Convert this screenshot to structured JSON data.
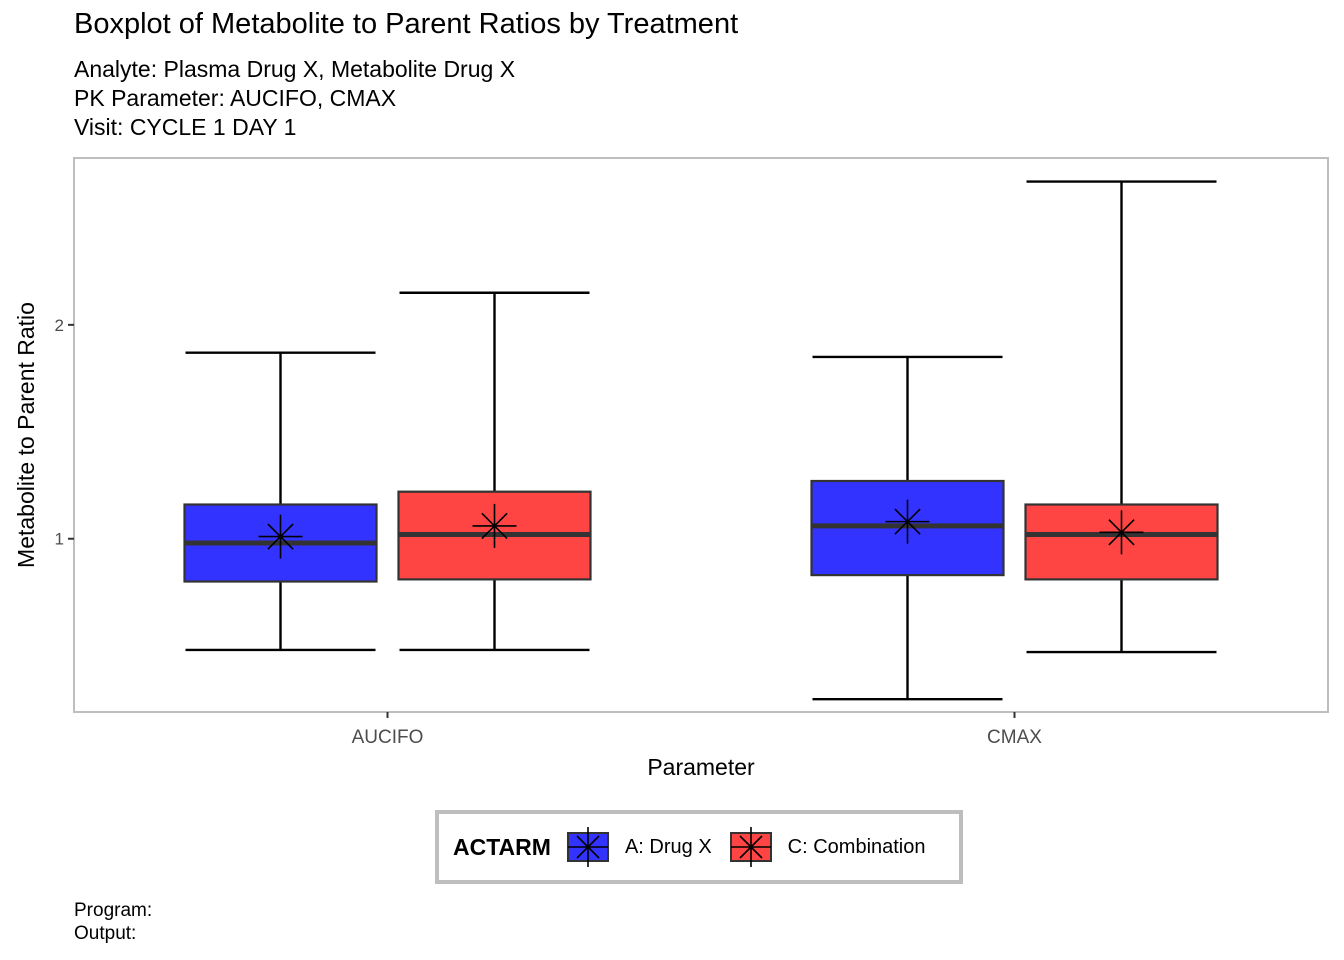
{
  "chart_data": {
    "type": "boxplot",
    "title": "Boxplot of Metabolite to Parent Ratios by Treatment",
    "subtitle_lines": [
      "Analyte: Plasma Drug X, Metabolite Drug X",
      "PK Parameter: AUCIFO, CMAX",
      "Visit: CYCLE 1 DAY 1"
    ],
    "xlabel": "Parameter",
    "ylabel": "Metabolite to Parent Ratio",
    "categories": [
      "AUCIFO",
      "CMAX"
    ],
    "ylim": [
      0.19,
      2.78
    ],
    "yticks": [
      1,
      2
    ],
    "grid": false,
    "legend": {
      "title": "ACTARM",
      "position": "bottom",
      "items": [
        {
          "label": "A: Drug X",
          "color": "#3333FF"
        },
        {
          "label": "C: Combination",
          "color": "#FF4444"
        }
      ]
    },
    "series": [
      {
        "name": "A: Drug X",
        "color": "#3333FF",
        "boxes": [
          {
            "category": "AUCIFO",
            "whisker_low": 0.48,
            "q1": 0.8,
            "median": 0.98,
            "q3": 1.16,
            "whisker_high": 1.87,
            "mean": 1.01
          },
          {
            "category": "CMAX",
            "whisker_low": 0.25,
            "q1": 0.83,
            "median": 1.06,
            "q3": 1.27,
            "whisker_high": 1.85,
            "mean": 1.08
          }
        ]
      },
      {
        "name": "C: Combination",
        "color": "#FF4444",
        "boxes": [
          {
            "category": "AUCIFO",
            "whisker_low": 0.48,
            "q1": 0.81,
            "median": 1.02,
            "q3": 1.22,
            "whisker_high": 2.15,
            "mean": 1.06
          },
          {
            "category": "CMAX",
            "whisker_low": 0.47,
            "q1": 0.81,
            "median": 1.02,
            "q3": 1.16,
            "whisker_high": 2.67,
            "mean": 1.03
          }
        ]
      }
    ]
  },
  "captions": {
    "program": "Program:",
    "output": "Output:"
  }
}
